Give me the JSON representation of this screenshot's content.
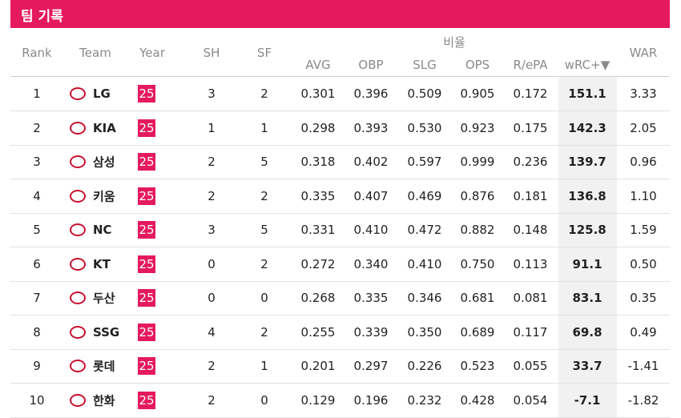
{
  "header": {
    "title": "팀 기록"
  },
  "table": {
    "group_label": "비율",
    "columns": [
      "Rank",
      "Team",
      "Year",
      "SH",
      "SF",
      "AVG",
      "OBP",
      "SLG",
      "OPS",
      "R/ePA",
      "wRC+▼",
      "WAR"
    ],
    "rows": [
      [
        "1",
        "LG",
        "25",
        "3",
        "2",
        "0.301",
        "0.396",
        "0.509",
        "0.905",
        "0.172",
        "151.1",
        "3.33"
      ],
      [
        "2",
        "KIA",
        "25",
        "1",
        "1",
        "0.298",
        "0.393",
        "0.530",
        "0.923",
        "0.175",
        "142.3",
        "2.05"
      ],
      [
        "3",
        "삼성",
        "25",
        "2",
        "5",
        "0.318",
        "0.402",
        "0.597",
        "0.999",
        "0.236",
        "139.7",
        "0.96"
      ],
      [
        "4",
        "키움",
        "25",
        "2",
        "2",
        "0.335",
        "0.407",
        "0.469",
        "0.876",
        "0.181",
        "136.8",
        "1.10"
      ],
      [
        "5",
        "NC",
        "25",
        "3",
        "5",
        "0.331",
        "0.410",
        "0.472",
        "0.882",
        "0.148",
        "125.8",
        "1.59"
      ],
      [
        "6",
        "KT",
        "25",
        "0",
        "2",
        "0.272",
        "0.340",
        "0.410",
        "0.750",
        "0.113",
        "91.1",
        "0.50"
      ],
      [
        "7",
        "두산",
        "25",
        "0",
        "0",
        "0.268",
        "0.335",
        "0.346",
        "0.681",
        "0.081",
        "83.1",
        "0.35"
      ],
      [
        "8",
        "SSG",
        "25",
        "4",
        "2",
        "0.255",
        "0.339",
        "0.350",
        "0.689",
        "0.117",
        "69.8",
        "0.49"
      ],
      [
        "9",
        "롯데",
        "25",
        "2",
        "1",
        "0.201",
        "0.297",
        "0.226",
        "0.523",
        "0.055",
        "33.7",
        "-1.41"
      ],
      [
        "10",
        "한화",
        "25",
        "2",
        "0",
        "0.129",
        "0.196",
        "0.232",
        "0.428",
        "0.054",
        "-7.1",
        "-1.82"
      ]
    ]
  }
}
